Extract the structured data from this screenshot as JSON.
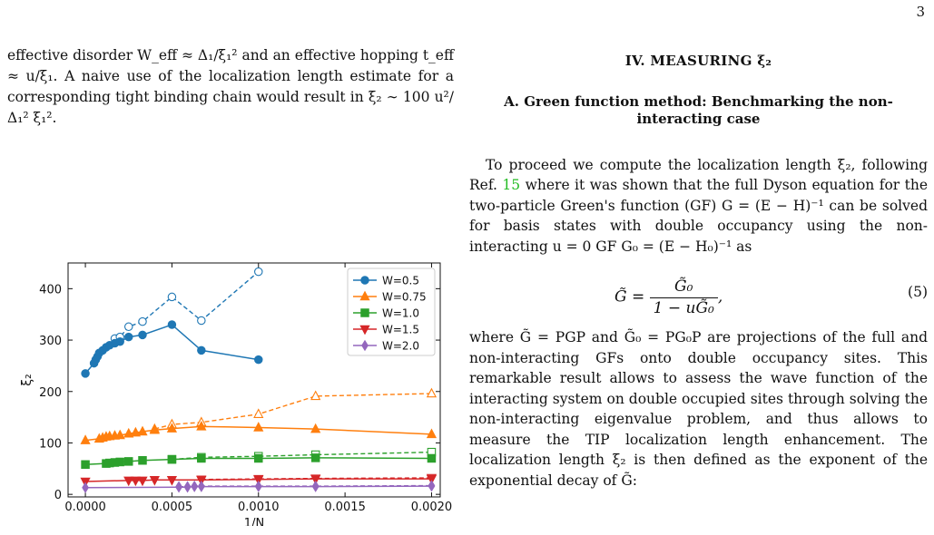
{
  "page_number": "3",
  "left_text": {
    "para": "effective disorder W_eff ≈ Δ₁/ξ₁² and an effective hopping t_eff ≈ u/ξ₁. A naive use of the localization length estimate for a corresponding tight binding chain would result in ξ₂ ∼ 100 u²/Δ₁² ξ₁²."
  },
  "section": {
    "title": "IV. MEASURING ξ₂",
    "subsection_title": "A. Green function method: Benchmarking the non-interacting case",
    "para1_a": "To proceed we compute the localization length ξ₂, following Ref.",
    "para1_ref": "15",
    "para1_b": "where it was shown that the full Dyson equation for the two-particle Green's function (GF) G = (E − H)⁻¹ can be solved for basis states with double occupancy using the non-interacting u = 0 GF G₀ = (E − H₀)⁻¹ as",
    "equation_lhs": "G̃ =",
    "equation_num_text": "G̃₀",
    "equation_den_text": "1 − uG̃₀",
    "equation_tail": ",",
    "equation_number": "(5)",
    "para2": "where G̃ = PGP and G̃₀ = PG₀P are projections of the full and non-interacting GFs onto double occupancy sites. This remarkable result allows to assess the wave function of the interacting system on double occupied sites through solving the non-interacting eigenvalue problem, and thus allows to measure the TIP localization length enhancement. The localization length ξ₂ is then defined as the exponent of the exponential decay of G̃:"
  },
  "chart_data": {
    "type": "line",
    "xlabel": "1/N",
    "ylabel": "ξ₂",
    "xlim": [
      -0.0001,
      0.00205
    ],
    "ylim": [
      -5,
      450
    ],
    "xticks": [
      0.0,
      0.0005,
      0.001,
      0.0015,
      0.002
    ],
    "xtick_labels": [
      "0.0000",
      "0.0005",
      "0.0010",
      "0.0015",
      "0.0020"
    ],
    "yticks": [
      0,
      100,
      200,
      300,
      400
    ],
    "ytick_labels": [
      "0",
      "100",
      "200",
      "300",
      "400"
    ],
    "legend_position": "top-right",
    "series": [
      {
        "name": "W=0.5",
        "color": "#1f77b4",
        "marker": "circle",
        "x": [
          0,
          5e-05,
          6e-05,
          7e-05,
          8e-05,
          0.0001,
          0.00012,
          0.00014,
          0.00017,
          0.0002,
          0.00025,
          0.00033,
          0.0005,
          0.00067,
          0.001
        ],
        "y": [
          235,
          255,
          262,
          268,
          275,
          280,
          286,
          290,
          294,
          297,
          306,
          310,
          330,
          280,
          262
        ],
        "dashed_x": [
          0.00017,
          0.0002,
          0.00025,
          0.00033,
          0.0005,
          0.00067,
          0.001
        ],
        "dashed_y": [
          303,
          306,
          326,
          336,
          384,
          338,
          433
        ]
      },
      {
        "name": "W=0.75",
        "color": "#ff7f0e",
        "marker": "triangle-up",
        "x": [
          0,
          8e-05,
          0.0001,
          0.00012,
          0.00014,
          0.00017,
          0.0002,
          0.00025,
          0.00029,
          0.00033,
          0.0004,
          0.0005,
          0.00067,
          0.001,
          0.00133,
          0.002
        ],
        "y": [
          105,
          108,
          110,
          112,
          113,
          114,
          115,
          118,
          120,
          122,
          125,
          128,
          132,
          130,
          127,
          117
        ],
        "dashed_x": [
          0.0004,
          0.0005,
          0.00067,
          0.001,
          0.00133,
          0.002
        ],
        "dashed_y": [
          127,
          136,
          140,
          156,
          191,
          196
        ]
      },
      {
        "name": "W=1.0",
        "color": "#2ca02c",
        "marker": "square",
        "x": [
          0,
          0.00012,
          0.00014,
          0.00017,
          0.0002,
          0.00025,
          0.00033,
          0.0005,
          0.00067,
          0.001,
          0.00133,
          0.002
        ],
        "y": [
          58,
          60,
          61,
          62,
          63,
          64,
          66,
          68,
          70,
          70,
          71,
          70
        ],
        "dashed_x": [
          0.0005,
          0.00067,
          0.001,
          0.00133,
          0.002
        ],
        "dashed_y": [
          68,
          72,
          74,
          77,
          82
        ]
      },
      {
        "name": "W=1.5",
        "color": "#d62728",
        "marker": "triangle-down",
        "x": [
          0,
          0.00025,
          0.00029,
          0.00033,
          0.0004,
          0.0005,
          0.00067,
          0.001,
          0.00133,
          0.002
        ],
        "y": [
          25,
          27,
          27,
          27,
          28,
          28,
          28,
          29,
          30,
          30
        ],
        "dashed_x": [
          0.00067,
          0.001,
          0.00133,
          0.002
        ],
        "dashed_y": [
          29,
          30,
          31,
          32
        ]
      },
      {
        "name": "W=2.0",
        "color": "#9467bd",
        "marker": "diamond",
        "x": [
          0,
          0.00054,
          0.00059,
          0.00063,
          0.00067,
          0.001,
          0.00133,
          0.002
        ],
        "y": [
          13,
          14,
          14,
          15,
          15,
          15,
          15,
          16
        ],
        "dashed_x": [
          0.00054,
          0.00059,
          0.00063,
          0.00067,
          0.001,
          0.00133,
          0.002
        ],
        "dashed_y": [
          15,
          15,
          16,
          16,
          16,
          16,
          17
        ]
      }
    ]
  }
}
